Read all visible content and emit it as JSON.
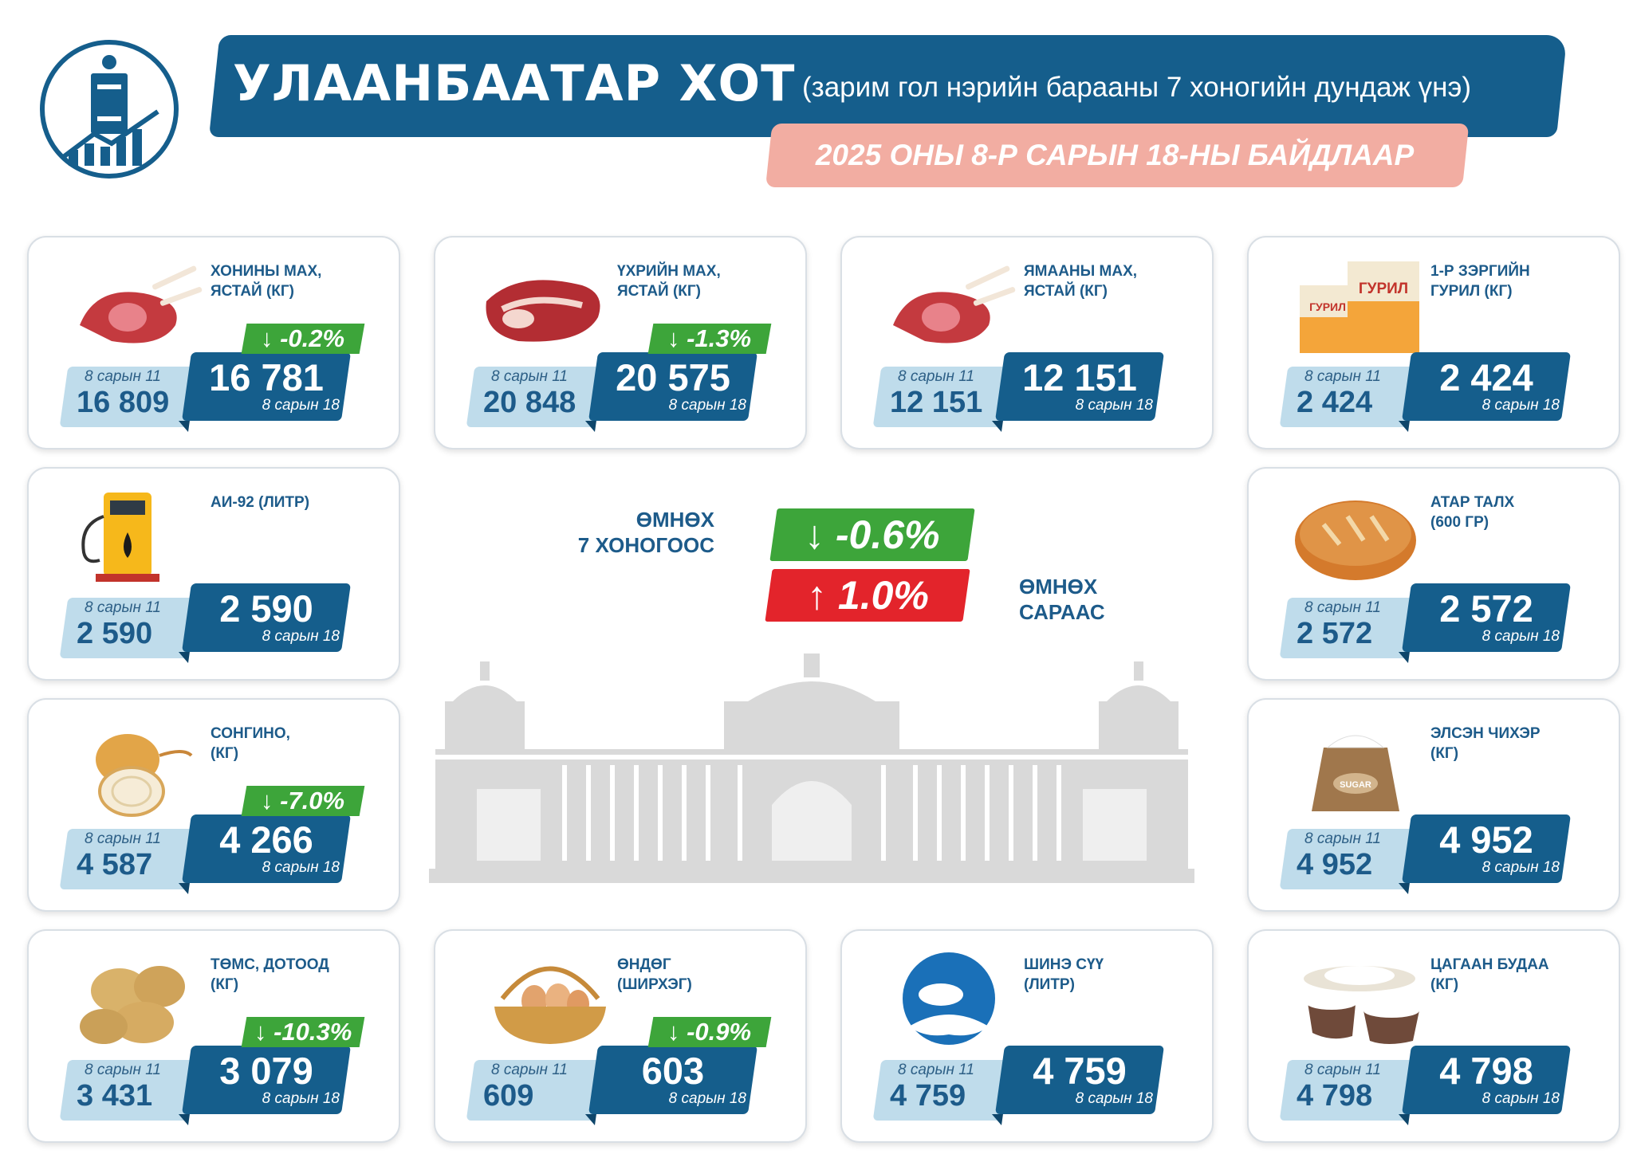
{
  "header": {
    "title": "УЛААНБААТАР ХОТ",
    "subtitle": "(зарим гол нэрийн барааны 7 хоногийн дундаж үнэ)",
    "date": "2025 ОНЫ 8-Р САРЫН 18-НЫ БАЙДЛААР"
  },
  "summary": {
    "week_label_1": "ӨМНӨХ",
    "week_label_2": "7 ХОНОГООС",
    "week_change": "↓ -0.6%",
    "month_label_1": "ӨМНӨХ",
    "month_label_2": "САРААС",
    "month_change": "↑ 1.0%",
    "colors": {
      "down": "#3da53a",
      "up": "#e3242b",
      "primary": "#155e8c",
      "light": "#bfdceb"
    }
  },
  "items": [
    {
      "name": "ХОНИНЫ МАХ,\nЯСТАЙ (КГ)",
      "icon": "mutton-icon",
      "prev_label": "8 сарын 11",
      "prev": "16 809",
      "cur": "16 781",
      "cur_label": "8 сарын 18",
      "change": "↓ -0.2%"
    },
    {
      "name": "ҮХРИЙН МАХ,\nЯСТАЙ (КГ)",
      "icon": "beef-icon",
      "prev_label": "8 сарын 11",
      "prev": "20 848",
      "cur": "20 575",
      "cur_label": "8 сарын 18",
      "change": "↓ -1.3%"
    },
    {
      "name": "ЯМААНЫ МАХ,\nЯСТАЙ (КГ)",
      "icon": "goat-meat-icon",
      "prev_label": "8 сарын 11",
      "prev": "12 151",
      "cur": "12 151",
      "cur_label": "8 сарын 18",
      "change": ""
    },
    {
      "name": "1-Р ЗЭРГИЙН\nГУРИЛ (КГ)",
      "icon": "flour-icon",
      "prev_label": "8 сарын 11",
      "prev": "2 424",
      "cur": "2 424",
      "cur_label": "8 сарын 18",
      "change": "",
      "flour_brand": "ГУРИЛ"
    },
    {
      "name": "АИ-92 (ЛИТР)",
      "icon": "fuel-pump-icon",
      "prev_label": "8 сарын 11",
      "prev": "2 590",
      "cur": "2 590",
      "cur_label": "8 сарын 18",
      "change": ""
    },
    {
      "name": "АТАР ТАЛХ\n(600 ГР)",
      "icon": "bread-icon",
      "prev_label": "8 сарын 11",
      "prev": "2 572",
      "cur": "2 572",
      "cur_label": "8 сарын 18",
      "change": ""
    },
    {
      "name": "СОНГИНО,\n(КГ)",
      "icon": "onion-icon",
      "prev_label": "8 сарын 11",
      "prev": "4 587",
      "cur": "4 266",
      "cur_label": "8 сарын 18",
      "change": "↓ -7.0%"
    },
    {
      "name": "ЭЛСЭН ЧИХЭР\n(КГ)",
      "icon": "sugar-sack-icon",
      "prev_label": "8 сарын 11",
      "prev": "4 952",
      "cur": "4 952",
      "cur_label": "8 сарын 18",
      "change": "",
      "sack_label": "SUGAR"
    },
    {
      "name": "ТӨМС, ДОТООД\n(КГ)",
      "icon": "potato-icon",
      "prev_label": "8 сарын 11",
      "prev": "3 431",
      "cur": "3 079",
      "cur_label": "8 сарын 18",
      "change": "↓ -10.3%"
    },
    {
      "name": "ӨНДӨГ\n(ШИРХЭГ)",
      "icon": "egg-basket-icon",
      "prev_label": "8 сарын 11",
      "prev": "609",
      "cur": "603",
      "cur_label": "8 сарын 18",
      "change": "↓ -0.9%"
    },
    {
      "name": "ШИНЭ СҮҮ\n(ЛИТР)",
      "icon": "milk-icon",
      "prev_label": "8 сарын 11",
      "prev": "4 759",
      "cur": "4 759",
      "cur_label": "8 сарын 18",
      "change": ""
    },
    {
      "name": "ЦАГААН БУДАА\n(КГ)",
      "icon": "rice-bowl-icon",
      "prev_label": "8 сарын 11",
      "prev": "4 798",
      "cur": "4 798",
      "cur_label": "8 сарын 18",
      "change": ""
    }
  ]
}
